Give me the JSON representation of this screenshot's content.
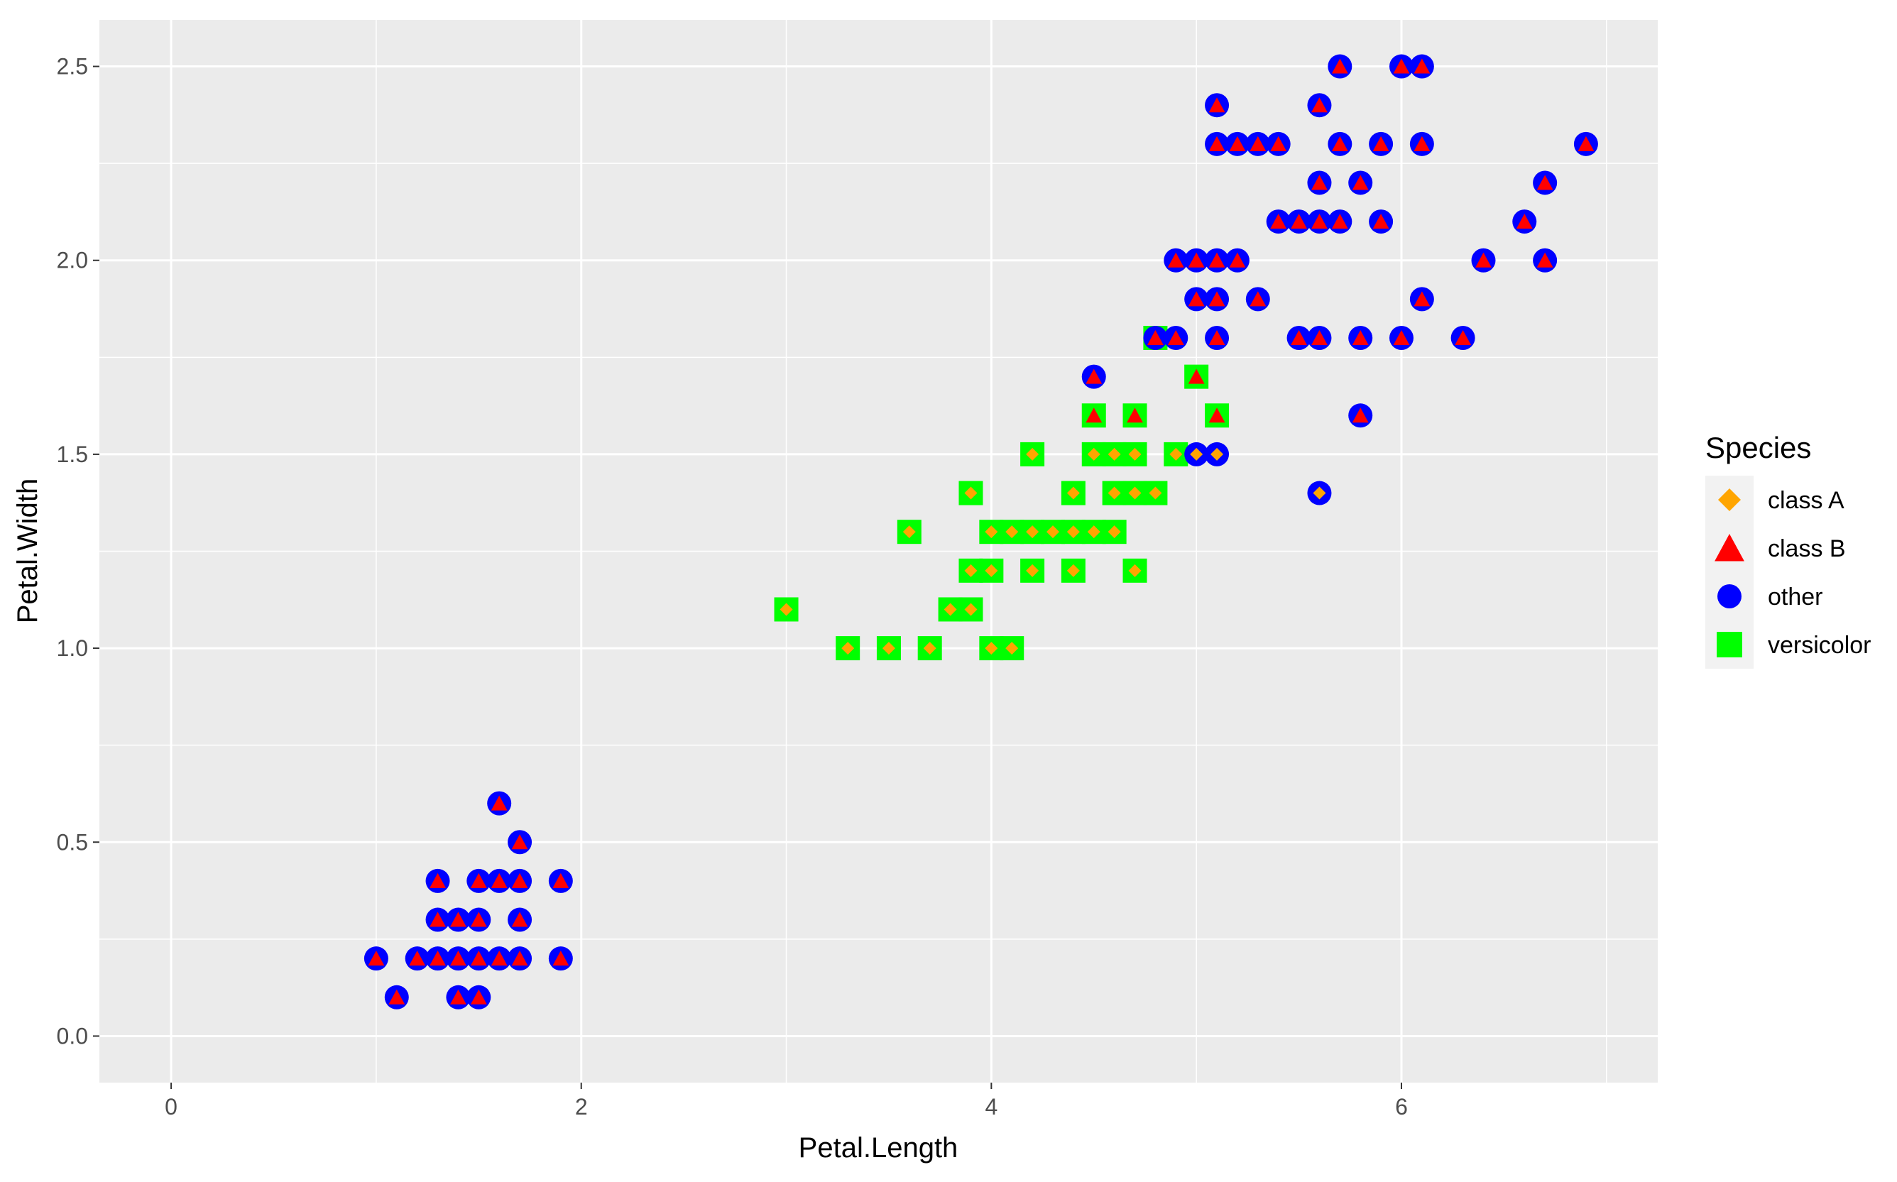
{
  "chart_data": {
    "type": "scatter",
    "xlabel": "Petal.Length",
    "ylabel": "Petal.Width",
    "xlim": [
      -0.35,
      7.25
    ],
    "ylim": [
      -0.12,
      2.62
    ],
    "x_ticks": [
      0,
      2,
      4,
      6
    ],
    "x_tick_labels": [
      "0",
      "2",
      "4",
      "6"
    ],
    "y_ticks": [
      0.0,
      0.5,
      1.0,
      1.5,
      2.0,
      2.5
    ],
    "y_tick_labels": [
      "0.0",
      "0.5",
      "1.0",
      "1.5",
      "2.0",
      "2.5"
    ],
    "grid": true,
    "legend": {
      "title": "Species",
      "position": "right",
      "entries": [
        {
          "label": "class A",
          "shape": "diamond",
          "color": "#FFA500"
        },
        {
          "label": "class B",
          "shape": "triangle",
          "color": "#FF0000"
        },
        {
          "label": "other",
          "shape": "circle",
          "color": "#0000FF"
        },
        {
          "label": "versicolor",
          "shape": "square",
          "color": "#00FF00"
        }
      ]
    },
    "colors": {
      "panel_background": "#EBEBEB",
      "grid": "#FFFFFF",
      "class_A": "#FFA500",
      "class_B": "#FF0000",
      "other": "#0000FF",
      "versicolor": "#00FF00"
    },
    "series": [
      {
        "outer": "circle",
        "inner": "triangle",
        "points": [
          [
            1.0,
            0.2
          ],
          [
            1.1,
            0.1
          ],
          [
            1.2,
            0.2
          ],
          [
            1.3,
            0.2
          ],
          [
            1.3,
            0.3
          ],
          [
            1.3,
            0.4
          ],
          [
            1.4,
            0.1
          ],
          [
            1.4,
            0.2
          ],
          [
            1.4,
            0.3
          ],
          [
            1.5,
            0.1
          ],
          [
            1.5,
            0.2
          ],
          [
            1.5,
            0.3
          ],
          [
            1.5,
            0.4
          ],
          [
            1.6,
            0.2
          ],
          [
            1.6,
            0.4
          ],
          [
            1.6,
            0.6
          ],
          [
            1.7,
            0.2
          ],
          [
            1.7,
            0.3
          ],
          [
            1.7,
            0.4
          ],
          [
            1.7,
            0.5
          ],
          [
            1.9,
            0.2
          ],
          [
            1.9,
            0.4
          ],
          [
            4.5,
            1.7
          ],
          [
            4.8,
            1.8
          ],
          [
            4.9,
            1.8
          ],
          [
            4.9,
            2.0
          ],
          [
            5.0,
            1.9
          ],
          [
            5.0,
            2.0
          ],
          [
            5.1,
            1.8
          ],
          [
            5.1,
            1.9
          ],
          [
            5.1,
            2.0
          ],
          [
            5.1,
            2.3
          ],
          [
            5.1,
            2.4
          ],
          [
            5.2,
            2.0
          ],
          [
            5.2,
            2.3
          ],
          [
            5.3,
            1.9
          ],
          [
            5.3,
            2.3
          ],
          [
            5.4,
            2.1
          ],
          [
            5.4,
            2.3
          ],
          [
            5.5,
            1.8
          ],
          [
            5.5,
            2.1
          ],
          [
            5.6,
            1.8
          ],
          [
            5.6,
            2.1
          ],
          [
            5.6,
            2.2
          ],
          [
            5.6,
            2.4
          ],
          [
            5.7,
            2.1
          ],
          [
            5.7,
            2.3
          ],
          [
            5.7,
            2.5
          ],
          [
            5.8,
            1.6
          ],
          [
            5.8,
            1.8
          ],
          [
            5.8,
            2.2
          ],
          [
            5.9,
            2.1
          ],
          [
            5.9,
            2.3
          ],
          [
            6.0,
            1.8
          ],
          [
            6.0,
            2.5
          ],
          [
            6.1,
            1.9
          ],
          [
            6.1,
            2.3
          ],
          [
            6.1,
            2.5
          ],
          [
            6.3,
            1.8
          ],
          [
            6.4,
            2.0
          ],
          [
            6.6,
            2.1
          ],
          [
            6.7,
            2.0
          ],
          [
            6.7,
            2.2
          ],
          [
            6.9,
            2.3
          ]
        ]
      },
      {
        "outer": "circle",
        "inner": "diamond",
        "points": [
          [
            5.0,
            1.5
          ],
          [
            5.1,
            1.5
          ],
          [
            5.6,
            1.4
          ]
        ]
      },
      {
        "outer": "square",
        "inner": "diamond",
        "points": [
          [
            3.0,
            1.1
          ],
          [
            3.3,
            1.0
          ],
          [
            3.5,
            1.0
          ],
          [
            3.6,
            1.3
          ],
          [
            3.7,
            1.0
          ],
          [
            3.8,
            1.1
          ],
          [
            3.9,
            1.1
          ],
          [
            3.9,
            1.2
          ],
          [
            3.9,
            1.4
          ],
          [
            4.0,
            1.0
          ],
          [
            4.0,
            1.2
          ],
          [
            4.0,
            1.3
          ],
          [
            4.1,
            1.0
          ],
          [
            4.1,
            1.3
          ],
          [
            4.2,
            1.2
          ],
          [
            4.2,
            1.3
          ],
          [
            4.2,
            1.5
          ],
          [
            4.3,
            1.3
          ],
          [
            4.4,
            1.2
          ],
          [
            4.4,
            1.3
          ],
          [
            4.4,
            1.4
          ],
          [
            4.5,
            1.3
          ],
          [
            4.5,
            1.5
          ],
          [
            4.6,
            1.3
          ],
          [
            4.6,
            1.4
          ],
          [
            4.6,
            1.5
          ],
          [
            4.7,
            1.2
          ],
          [
            4.7,
            1.4
          ],
          [
            4.7,
            1.5
          ],
          [
            4.8,
            1.4
          ],
          [
            4.9,
            1.5
          ]
        ]
      },
      {
        "outer": "square",
        "inner": "triangle",
        "points": [
          [
            4.5,
            1.6
          ],
          [
            4.7,
            1.6
          ],
          [
            5.0,
            1.7
          ],
          [
            5.1,
            1.6
          ]
        ]
      },
      {
        "outer": "square",
        "inner": "none",
        "points": [
          [
            4.8,
            1.8
          ]
        ]
      }
    ]
  }
}
